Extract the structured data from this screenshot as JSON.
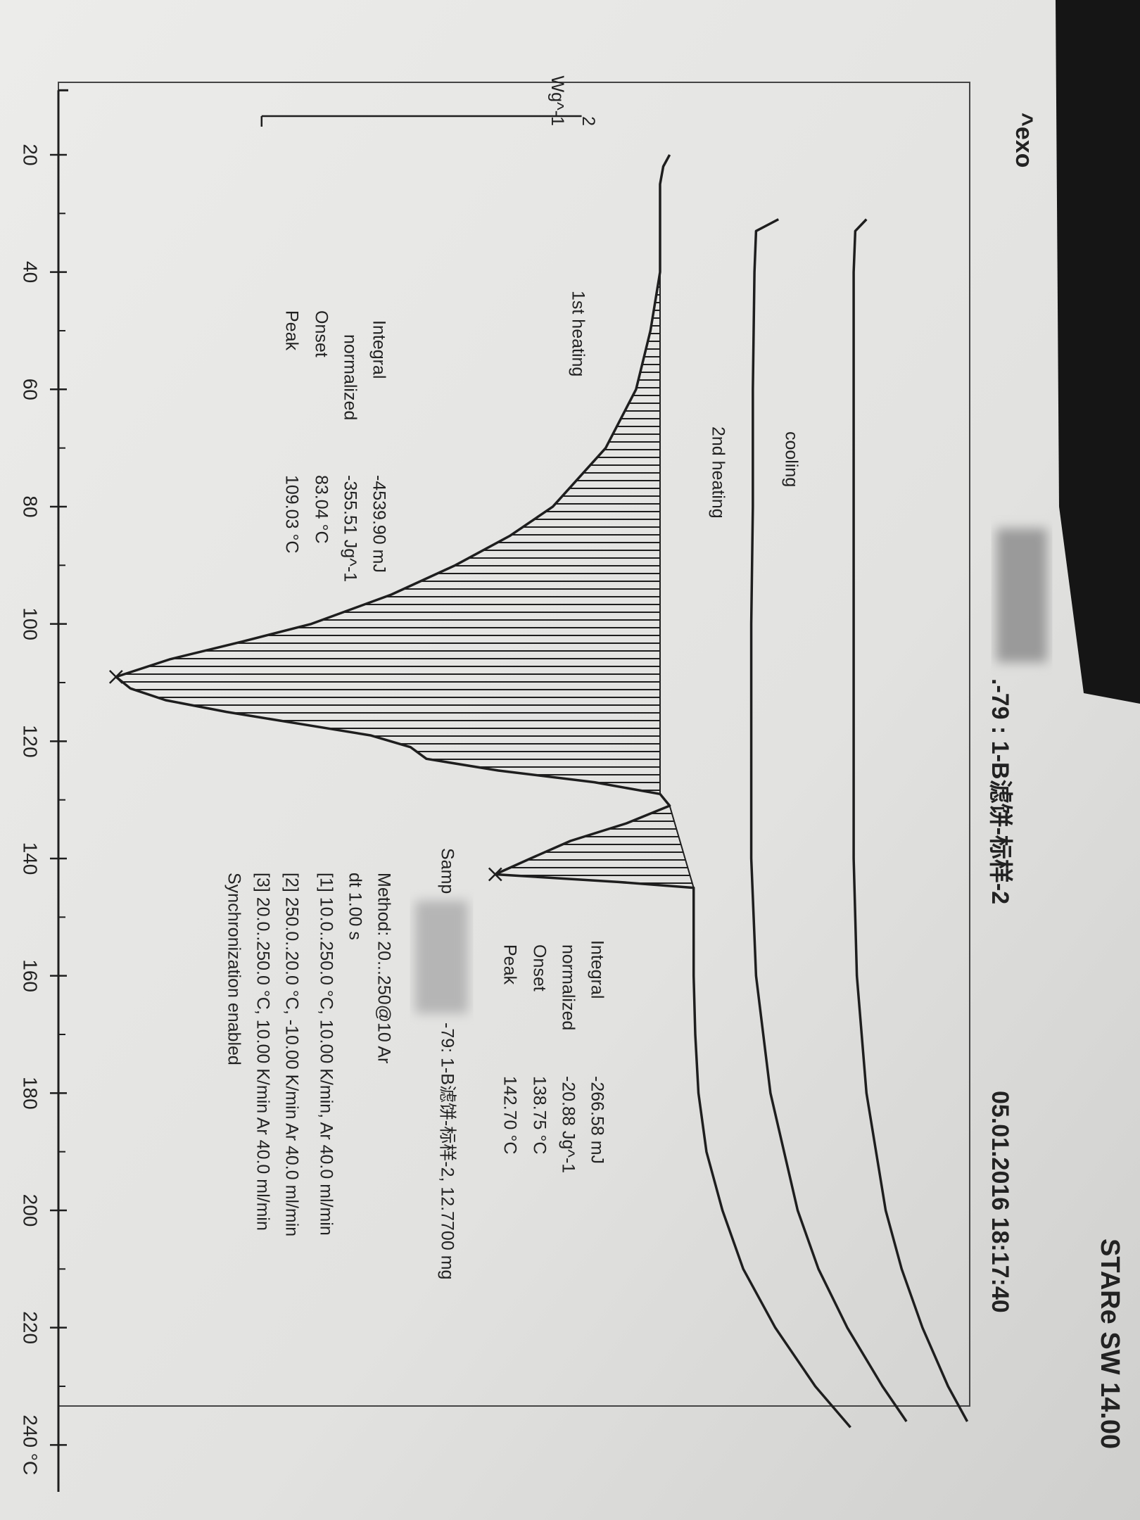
{
  "chart_data": {
    "type": "line",
    "exo_label": "^exo",
    "title": ".-79 : 1-B滤饼-标样-2",
    "datetime": "05.01.2016 18:17:40",
    "scale_bar": 2,
    "scale_unit": "Wg^-1",
    "xlim": [
      9,
      248
    ],
    "xticks": [
      20,
      40,
      60,
      80,
      100,
      120,
      140,
      160,
      180,
      200,
      220,
      {
        "value": 240,
        "label": "240 °C"
      }
    ],
    "minor_xticks": [
      30,
      50,
      70,
      90,
      110,
      130,
      150,
      170,
      190,
      210,
      230
    ],
    "ylim": [
      0,
      6.5
    ],
    "series": [
      {
        "name": "1st heating",
        "color": "#1e1e1e",
        "x": [
          20,
          22,
          25,
          30,
          40,
          50,
          60,
          70,
          80,
          85,
          90,
          95,
          100,
          103,
          106,
          109.03,
          111,
          113,
          115,
          117,
          119,
          121,
          123,
          125,
          127,
          129,
          131,
          134,
          137,
          140,
          142.7,
          144,
          145,
          150,
          160,
          170,
          180,
          190,
          200,
          210,
          220,
          230,
          237
        ],
        "values": [
          3.82,
          3.78,
          3.76,
          3.76,
          3.76,
          3.7,
          3.61,
          3.42,
          3.09,
          2.82,
          2.48,
          2.08,
          1.58,
          1.15,
          0.7,
          0.36,
          0.45,
          0.67,
          1.05,
          1.5,
          1.95,
          2.2,
          2.3,
          2.75,
          3.35,
          3.76,
          3.82,
          3.55,
          3.2,
          2.95,
          2.73,
          3.5,
          3.97,
          3.97,
          3.97,
          3.98,
          4.0,
          4.05,
          4.15,
          4.28,
          4.48,
          4.73,
          4.95
        ]
      },
      {
        "name": "2nd heating",
        "color": "#1e1e1e",
        "x": [
          31,
          33,
          40,
          60,
          80,
          100,
          120,
          140,
          160,
          180,
          200,
          210,
          220,
          230,
          236
        ],
        "values": [
          4.5,
          4.36,
          4.35,
          4.34,
          4.34,
          4.33,
          4.33,
          4.33,
          4.36,
          4.45,
          4.62,
          4.75,
          4.93,
          5.15,
          5.3
        ]
      },
      {
        "name": "cooling",
        "color": "#1e1e1e",
        "x": [
          31,
          33,
          40,
          60,
          100,
          140,
          160,
          180,
          200,
          210,
          220,
          230,
          236
        ],
        "values": [
          5.05,
          4.98,
          4.97,
          4.97,
          4.97,
          4.97,
          4.99,
          5.05,
          5.17,
          5.27,
          5.4,
          5.56,
          5.68
        ]
      }
    ],
    "results": [
      {
        "labels": [
          "Integral",
          "normalized",
          "Onset",
          "Peak"
        ],
        "values": [
          "-4539.90 mJ",
          "-355.51 Jg^-1",
          "83.04 °C",
          "109.03 °C"
        ]
      },
      {
        "labels": [
          "Integral",
          "normalized",
          "Onset",
          "Peak"
        ],
        "values": [
          "-266.58 mJ",
          "-20.88 Jg^-1",
          "138.75 °C",
          "142.70 °C"
        ]
      }
    ],
    "sample": {
      "prefix": "Samp",
      "text": "-79:  1-B滤饼-标样-2, 12.7700 mg"
    },
    "method": [
      "Method: 20...250@10 Ar",
      "dt 1.00 s",
      "[1] 10.0..250.0 °C, 10.00 K/min, Ar 40.0 ml/min",
      "[2] 250.0..20.0 °C, -10.00 K/min  Ar 40.0 ml/min",
      "[3] 20.0..250.0 °C, 10.00 K/min  Ar 40.0 ml/min",
      "Synchronization enabled"
    ],
    "footer": "STARe SW 14.00"
  }
}
